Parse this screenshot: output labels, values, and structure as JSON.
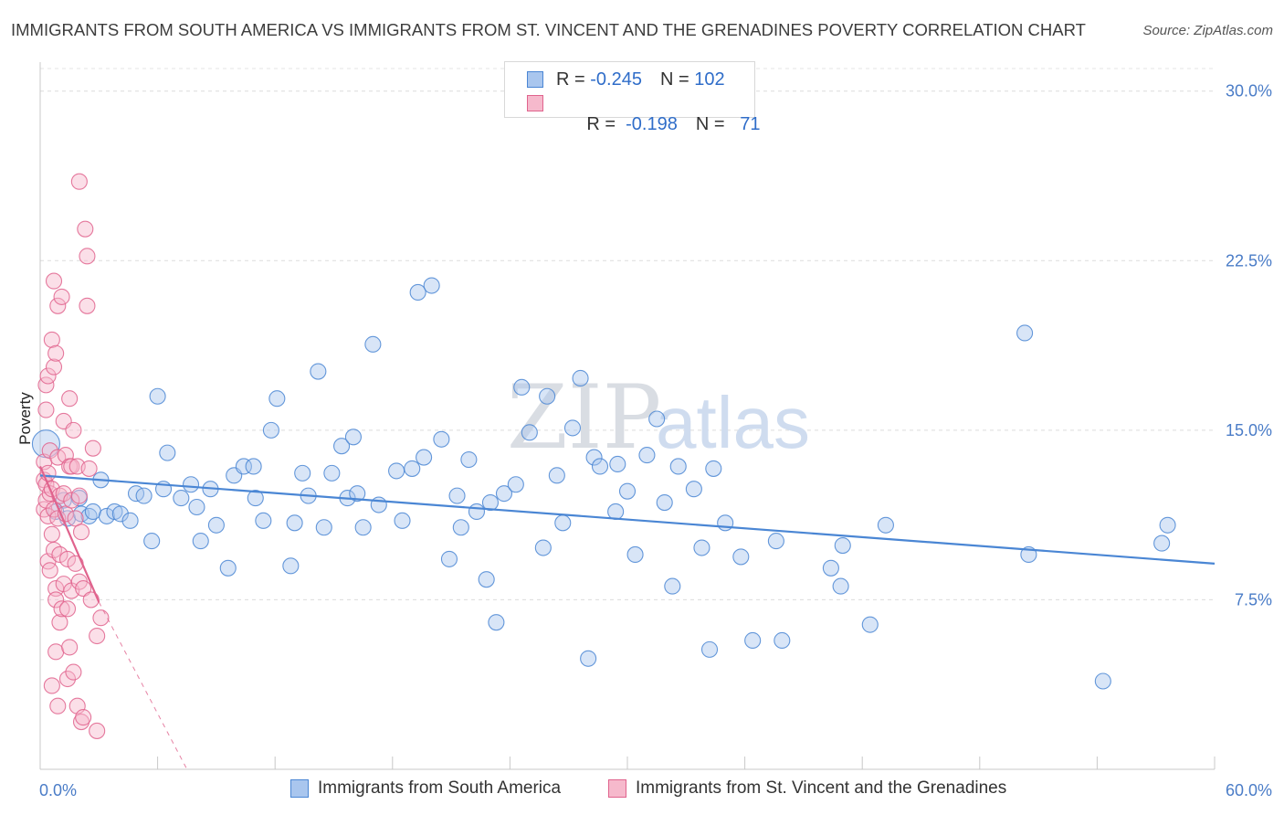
{
  "chart_data": {
    "type": "scatter",
    "title": "IMMIGRANTS FROM SOUTH AMERICA VS IMMIGRANTS FROM ST. VINCENT AND THE GRENADINES POVERTY CORRELATION CHART",
    "source": "Source: ZipAtlas.com",
    "ylabel": "Poverty",
    "xlabel": "",
    "xlim": [
      0,
      60
    ],
    "ylim": [
      0,
      31
    ],
    "x_tick_labels": {
      "min": "0.0%",
      "max": "60.0%"
    },
    "y_ticks": [
      {
        "value": 7.5,
        "label": "7.5%"
      },
      {
        "value": 15.0,
        "label": "15.0%"
      },
      {
        "value": 22.5,
        "label": "22.5%"
      },
      {
        "value": 30.0,
        "label": "30.0%"
      }
    ],
    "x_minor_ticks": [
      6,
      12,
      18,
      24,
      30,
      36,
      42,
      48,
      54,
      60
    ],
    "grid": true,
    "watermark": {
      "part1": "ZIP",
      "part2": "atlas"
    },
    "legend": {
      "rows": [
        {
          "r_label": "R = ",
          "r_value": "-0.245",
          "n_label": "N = ",
          "n_value": "102"
        },
        {
          "r_label": "R = ",
          "r_value": " -0.198",
          "n_label": "N = ",
          "n_value": "  71"
        }
      ]
    },
    "series": [
      {
        "name": "Immigrants from South America",
        "color": "#4a86d4",
        "fill": "#a9c6ee",
        "trend": {
          "x0": 0,
          "y0": 13.0,
          "x1": 60,
          "y1": 9.1,
          "dashed_to": null
        },
        "points": [
          [
            0.3,
            14.4
          ],
          [
            0.8,
            11.4
          ],
          [
            1.2,
            11.9
          ],
          [
            1.4,
            11.1
          ],
          [
            2.0,
            12.0
          ],
          [
            2.1,
            11.3
          ],
          [
            2.5,
            11.2
          ],
          [
            2.7,
            11.4
          ],
          [
            3.1,
            12.8
          ],
          [
            3.4,
            11.2
          ],
          [
            3.8,
            11.4
          ],
          [
            4.1,
            11.3
          ],
          [
            4.6,
            11.0
          ],
          [
            4.9,
            12.2
          ],
          [
            5.3,
            12.1
          ],
          [
            5.7,
            10.1
          ],
          [
            6.0,
            16.5
          ],
          [
            6.3,
            12.4
          ],
          [
            6.5,
            14.0
          ],
          [
            7.2,
            12.0
          ],
          [
            7.7,
            12.6
          ],
          [
            8.0,
            11.6
          ],
          [
            8.2,
            10.1
          ],
          [
            8.7,
            12.4
          ],
          [
            9.0,
            10.8
          ],
          [
            9.6,
            8.9
          ],
          [
            9.9,
            13.0
          ],
          [
            10.4,
            13.4
          ],
          [
            10.9,
            13.4
          ],
          [
            11.0,
            12.0
          ],
          [
            11.4,
            11.0
          ],
          [
            11.8,
            15.0
          ],
          [
            12.1,
            16.4
          ],
          [
            12.8,
            9.0
          ],
          [
            13.0,
            10.9
          ],
          [
            13.4,
            13.1
          ],
          [
            13.7,
            12.1
          ],
          [
            14.2,
            17.6
          ],
          [
            14.5,
            10.7
          ],
          [
            14.9,
            13.1
          ],
          [
            15.4,
            14.3
          ],
          [
            15.7,
            12.0
          ],
          [
            16.0,
            14.7
          ],
          [
            16.2,
            12.2
          ],
          [
            16.5,
            10.7
          ],
          [
            17.0,
            18.8
          ],
          [
            17.3,
            11.7
          ],
          [
            18.2,
            13.2
          ],
          [
            18.5,
            11.0
          ],
          [
            19.0,
            13.3
          ],
          [
            19.3,
            21.1
          ],
          [
            19.6,
            13.8
          ],
          [
            20.0,
            21.4
          ],
          [
            20.5,
            14.6
          ],
          [
            20.9,
            9.3
          ],
          [
            21.3,
            12.1
          ],
          [
            21.5,
            10.7
          ],
          [
            21.9,
            13.7
          ],
          [
            22.3,
            11.4
          ],
          [
            22.8,
            8.4
          ],
          [
            23.0,
            11.8
          ],
          [
            23.3,
            6.5
          ],
          [
            23.7,
            12.2
          ],
          [
            24.3,
            12.6
          ],
          [
            24.6,
            16.9
          ],
          [
            25.0,
            14.9
          ],
          [
            25.7,
            9.8
          ],
          [
            25.9,
            16.5
          ],
          [
            26.4,
            13.0
          ],
          [
            26.7,
            10.9
          ],
          [
            27.2,
            15.1
          ],
          [
            27.6,
            17.3
          ],
          [
            28.0,
            4.9
          ],
          [
            28.3,
            13.8
          ],
          [
            28.6,
            13.4
          ],
          [
            29.4,
            11.4
          ],
          [
            29.5,
            13.5
          ],
          [
            30.0,
            12.3
          ],
          [
            30.4,
            9.5
          ],
          [
            31.0,
            13.9
          ],
          [
            31.5,
            15.5
          ],
          [
            31.9,
            11.8
          ],
          [
            32.3,
            8.1
          ],
          [
            32.6,
            13.4
          ],
          [
            33.4,
            12.4
          ],
          [
            33.8,
            9.8
          ],
          [
            34.2,
            5.3
          ],
          [
            34.4,
            13.3
          ],
          [
            35.0,
            10.9
          ],
          [
            35.8,
            9.4
          ],
          [
            36.4,
            5.7
          ],
          [
            37.6,
            10.1
          ],
          [
            37.9,
            5.7
          ],
          [
            40.4,
            8.9
          ],
          [
            40.9,
            8.1
          ],
          [
            41.0,
            9.9
          ],
          [
            42.4,
            6.4
          ],
          [
            43.2,
            10.8
          ],
          [
            50.3,
            19.3
          ],
          [
            50.5,
            9.5
          ],
          [
            54.3,
            3.9
          ],
          [
            57.3,
            10.0
          ],
          [
            57.6,
            10.8
          ]
        ]
      },
      {
        "name": "Immigrants from St. Vincent and the Grenadines",
        "color": "#e0638d",
        "fill": "#f6b9cc",
        "trend": {
          "x0": 0,
          "y0": 13.4,
          "x1": 3,
          "y1": 7.4,
          "dashed_to": {
            "x": 7.5,
            "y": 0
          }
        },
        "points": [
          [
            0.2,
            12.8
          ],
          [
            0.2,
            13.6
          ],
          [
            0.2,
            11.5
          ],
          [
            0.3,
            12.6
          ],
          [
            0.3,
            11.9
          ],
          [
            0.3,
            15.9
          ],
          [
            0.3,
            17.0
          ],
          [
            0.4,
            17.4
          ],
          [
            0.4,
            9.2
          ],
          [
            0.4,
            11.2
          ],
          [
            0.4,
            13.1
          ],
          [
            0.5,
            12.2
          ],
          [
            0.5,
            14.1
          ],
          [
            0.5,
            8.8
          ],
          [
            0.6,
            19.0
          ],
          [
            0.6,
            10.4
          ],
          [
            0.6,
            12.4
          ],
          [
            0.6,
            3.7
          ],
          [
            0.7,
            21.6
          ],
          [
            0.7,
            17.8
          ],
          [
            0.7,
            9.7
          ],
          [
            0.7,
            11.5
          ],
          [
            0.8,
            18.4
          ],
          [
            0.8,
            8.0
          ],
          [
            0.8,
            7.5
          ],
          [
            0.8,
            5.2
          ],
          [
            0.9,
            2.8
          ],
          [
            0.9,
            20.5
          ],
          [
            0.9,
            11.1
          ],
          [
            0.9,
            13.8
          ],
          [
            1.0,
            9.5
          ],
          [
            1.0,
            12.1
          ],
          [
            1.0,
            6.5
          ],
          [
            1.1,
            7.1
          ],
          [
            1.1,
            20.9
          ],
          [
            1.2,
            15.4
          ],
          [
            1.2,
            12.2
          ],
          [
            1.2,
            8.2
          ],
          [
            1.3,
            13.9
          ],
          [
            1.3,
            11.3
          ],
          [
            1.4,
            9.3
          ],
          [
            1.4,
            7.1
          ],
          [
            1.4,
            4.0
          ],
          [
            1.5,
            16.4
          ],
          [
            1.5,
            13.4
          ],
          [
            1.5,
            5.4
          ],
          [
            1.6,
            13.4
          ],
          [
            1.6,
            11.9
          ],
          [
            1.6,
            7.9
          ],
          [
            1.7,
            4.3
          ],
          [
            1.7,
            15.0
          ],
          [
            1.8,
            9.1
          ],
          [
            1.8,
            11.1
          ],
          [
            1.9,
            13.4
          ],
          [
            1.9,
            2.8
          ],
          [
            2.0,
            8.3
          ],
          [
            2.0,
            26.0
          ],
          [
            2.0,
            12.1
          ],
          [
            2.1,
            2.1
          ],
          [
            2.1,
            10.5
          ],
          [
            2.2,
            8.0
          ],
          [
            2.2,
            2.3
          ],
          [
            2.3,
            23.9
          ],
          [
            2.4,
            22.7
          ],
          [
            2.4,
            20.5
          ],
          [
            2.5,
            13.3
          ],
          [
            2.6,
            7.5
          ],
          [
            2.7,
            14.2
          ],
          [
            2.9,
            5.9
          ],
          [
            2.9,
            1.7
          ],
          [
            3.1,
            6.7
          ]
        ]
      }
    ]
  }
}
